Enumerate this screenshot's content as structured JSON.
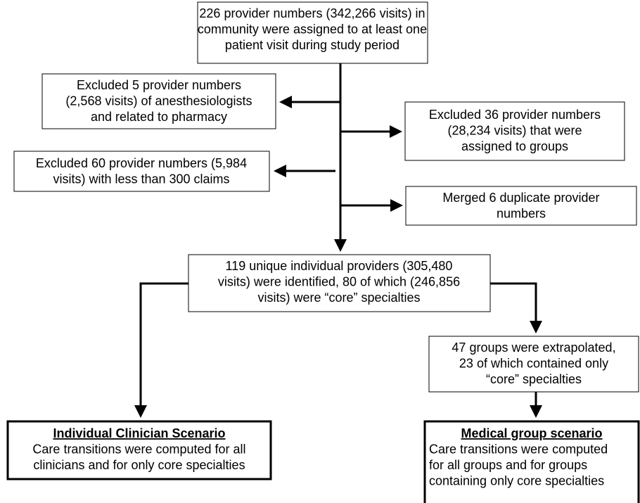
{
  "nodes": [
    {
      "lines": [
        "226 provider numbers (342,266 visits) in",
        "community were assigned to at least one",
        "patient visit during study period"
      ]
    },
    {
      "lines": [
        "Excluded 5 provider numbers",
        "(2,568 visits) of anesthesiologists",
        "and related to pharmacy"
      ]
    },
    {
      "lines": [
        "Excluded 36 provider numbers",
        "(28,234 visits) that were",
        "assigned to groups"
      ]
    },
    {
      "lines": [
        "Excluded 60 provider numbers (5,984",
        "visits) with less than 300 claims"
      ]
    },
    {
      "lines": [
        "Merged 6 duplicate provider",
        "numbers"
      ]
    },
    {
      "lines": [
        "119 unique individual providers (305,480",
        "visits) were identified, 80 of which (246,856",
        "visits) were “core” specialties"
      ]
    },
    {
      "lines": [
        "47 groups were extrapolated,",
        "23 of which contained only",
        "“core” specialties"
      ]
    },
    {
      "heading": "Individual Clinician Scenario",
      "lines": [
        "Care transitions were computed for all",
        "clinicians and for only core specialties"
      ]
    },
    {
      "heading": "Medical group scenario",
      "lines": [
        "Care transitions were computed",
        "for all groups and for groups",
        "containing only core specialties"
      ]
    }
  ]
}
